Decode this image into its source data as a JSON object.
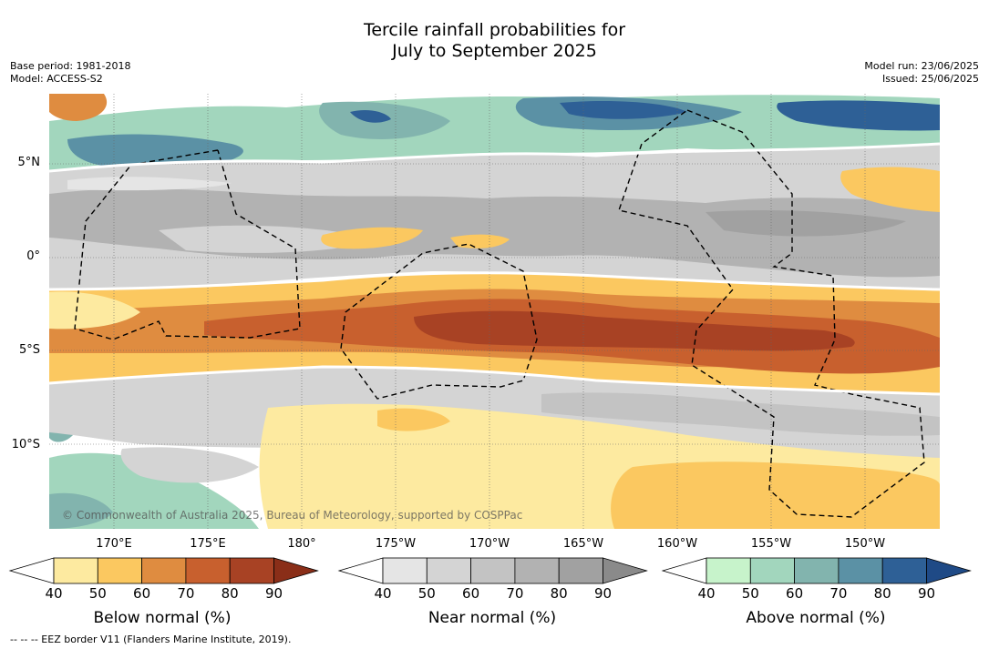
{
  "title": {
    "line1": "Tercile rainfall probabilities for",
    "line2": "July to September 2025"
  },
  "meta_left": {
    "base_period": "Base period: 1981-2018",
    "model": "Model: ACCESS-S2"
  },
  "meta_right": {
    "model_run": "Model run: 23/06/2025",
    "issued": "Issued: 25/06/2025"
  },
  "map": {
    "lat_labels": [
      "5°N",
      "0°",
      "5°S",
      "10°S"
    ],
    "lon_labels": [
      "170°E",
      "175°E",
      "180°",
      "175°W",
      "170°W",
      "165°W",
      "160°W",
      "155°W",
      "150°W"
    ],
    "copyright": "© Commonwealth of Australia 2025, Bureau of Meteorology, supported by COSPPac",
    "border_color": "#000000"
  },
  "colorbars": [
    {
      "title": "Below normal (%)",
      "ticks": [
        "40",
        "50",
        "60",
        "70",
        "80",
        "90"
      ],
      "colors": [
        "#ffffff",
        "#fdeaa0",
        "#fbc860",
        "#df8c40",
        "#c8602e",
        "#a84224",
        "#8a2e18"
      ]
    },
    {
      "title": "Near normal (%)",
      "ticks": [
        "40",
        "50",
        "60",
        "70",
        "80",
        "90"
      ],
      "colors": [
        "#ffffff",
        "#e5e5e5",
        "#d4d4d4",
        "#c3c3c3",
        "#b2b2b2",
        "#a1a1a1",
        "#8a8a8a"
      ]
    },
    {
      "title": "Above normal (%)",
      "ticks": [
        "40",
        "50",
        "60",
        "70",
        "80",
        "90"
      ],
      "colors": [
        "#ffffff",
        "#c7f3cb",
        "#a2d6bd",
        "#82b4ae",
        "#5b91a5",
        "#2e6096",
        "#1f4a86"
      ]
    }
  ],
  "footnote": "-- -- -- EEZ border V11 (Flanders Marine Institute, 2019)."
}
